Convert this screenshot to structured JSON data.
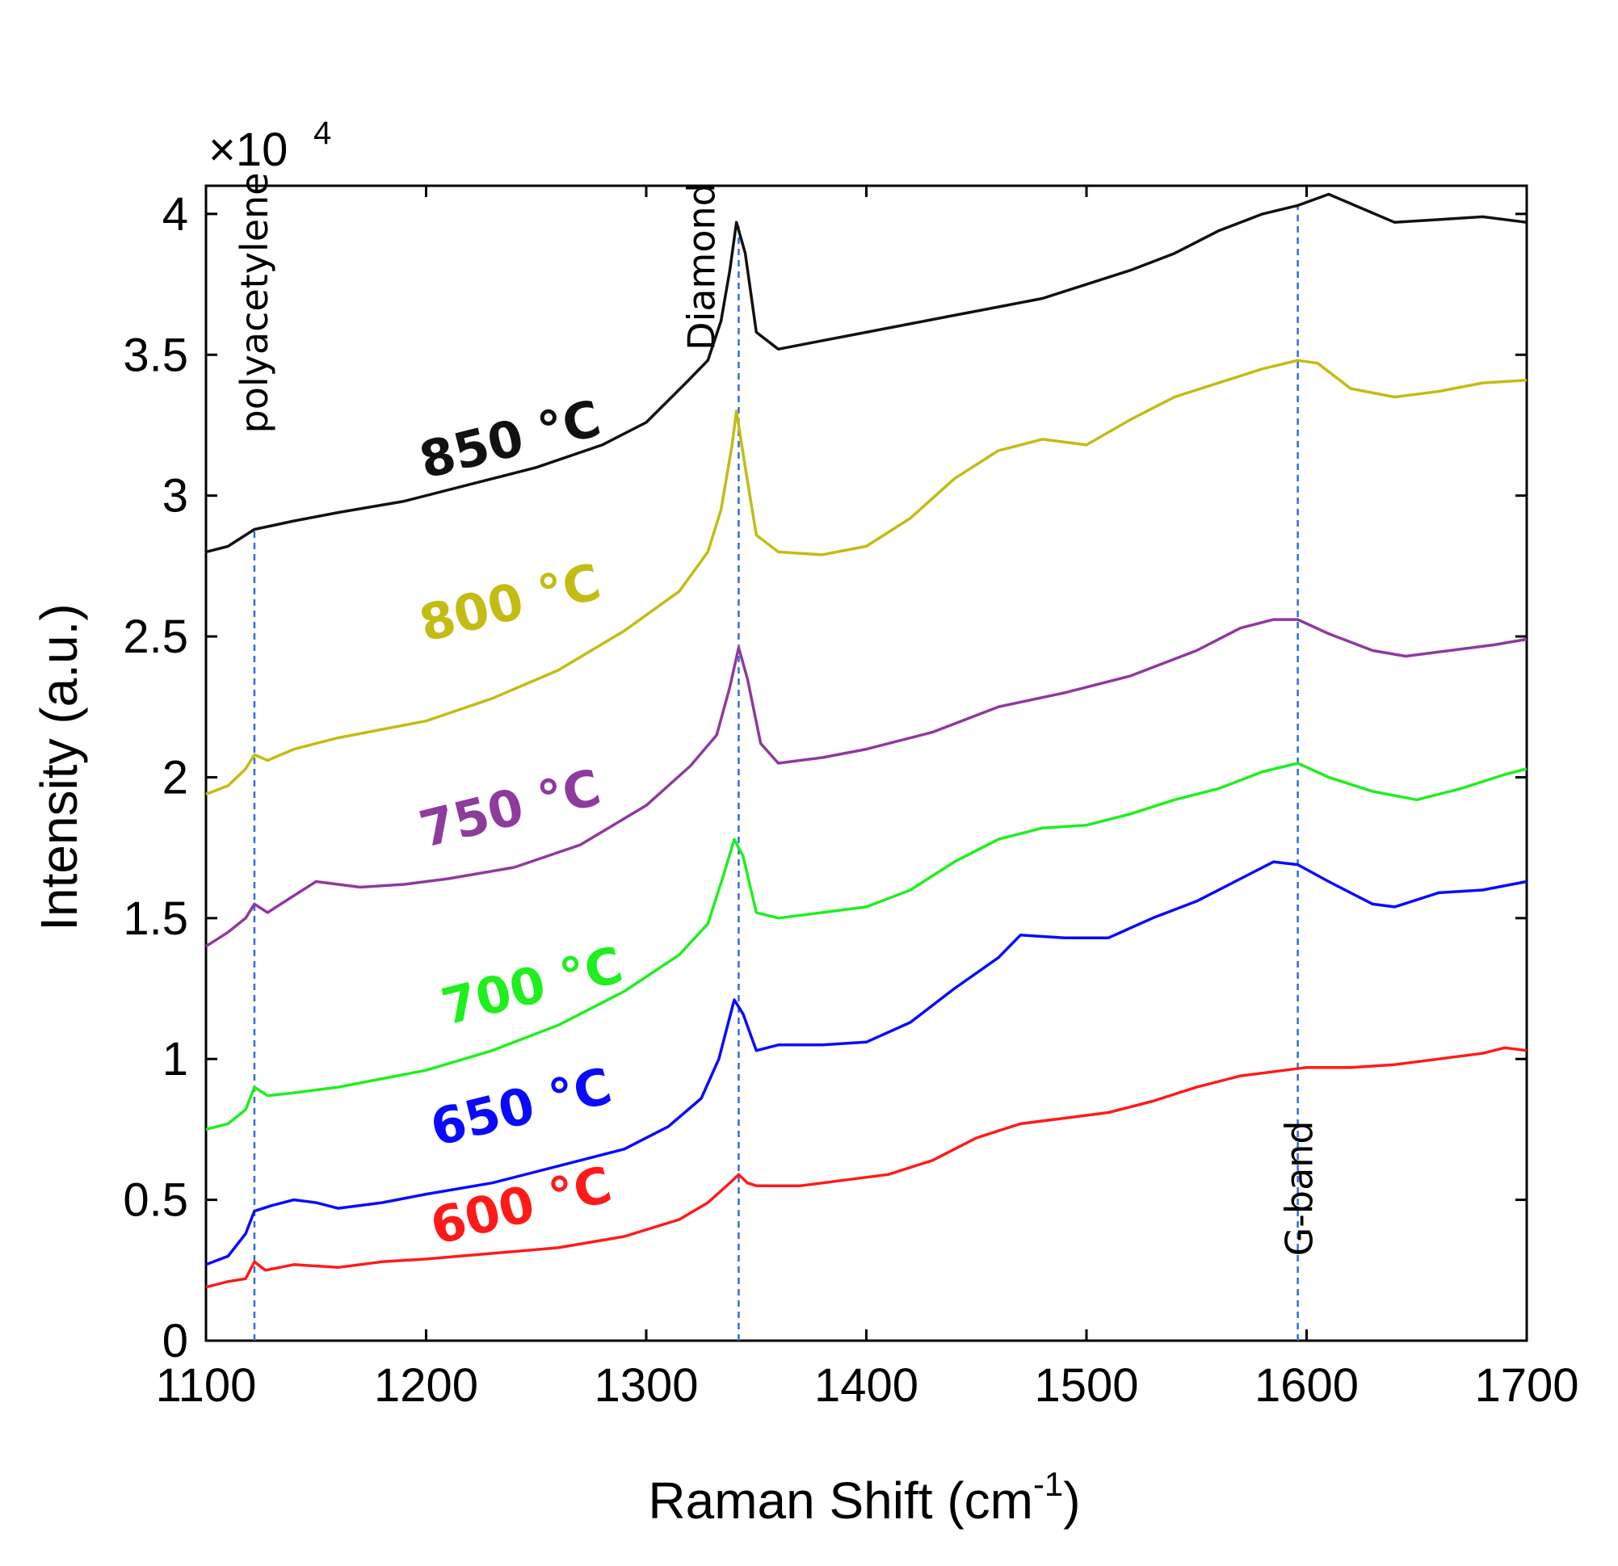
{
  "chart_data": {
    "type": "line",
    "title": "",
    "xlabel": "Raman Shift (cm",
    "xlabel_sup": "-1",
    "xlabel_end": ")",
    "ylabel": "Intensity (a.u.)",
    "y_multiplier": {
      "base": "×10",
      "exponent": "4"
    },
    "xlim": [
      1100,
      1700
    ],
    "ylim": [
      0,
      4.1
    ],
    "x_ticks": [
      {
        "value": 1100,
        "label": "1100"
      },
      {
        "value": 1200,
        "label": "1200"
      },
      {
        "value": 1300,
        "label": "1300"
      },
      {
        "value": 1400,
        "label": "1400"
      },
      {
        "value": 1500,
        "label": "1500"
      },
      {
        "value": 1600,
        "label": "1600"
      },
      {
        "value": 1700,
        "label": "1700"
      }
    ],
    "y_ticks": [
      {
        "value": 0,
        "label": "0"
      },
      {
        "value": 0.5,
        "label": "0.5"
      },
      {
        "value": 1,
        "label": "1"
      },
      {
        "value": 1.5,
        "label": "1.5"
      },
      {
        "value": 2,
        "label": "2"
      },
      {
        "value": 2.5,
        "label": "2.5"
      },
      {
        "value": 3,
        "label": "3"
      },
      {
        "value": 3.5,
        "label": "3.5"
      },
      {
        "value": 4,
        "label": "4"
      }
    ],
    "reference_lines": [
      {
        "x": 1122,
        "label": "polyacetylene"
      },
      {
        "x": 1342,
        "label": "Diamond"
      },
      {
        "x": 1596,
        "label": "G-band"
      }
    ],
    "series": [
      {
        "name": "600 °C",
        "color": "#ff1a1a",
        "label_anchor": {
          "x": 1245,
          "y": 0.42
        },
        "points": [
          [
            1100,
            0.19
          ],
          [
            1110,
            0.21
          ],
          [
            1118,
            0.22
          ],
          [
            1122,
            0.28
          ],
          [
            1127,
            0.25
          ],
          [
            1140,
            0.27
          ],
          [
            1160,
            0.26
          ],
          [
            1180,
            0.28
          ],
          [
            1200,
            0.29
          ],
          [
            1230,
            0.31
          ],
          [
            1260,
            0.33
          ],
          [
            1290,
            0.37
          ],
          [
            1315,
            0.43
          ],
          [
            1328,
            0.49
          ],
          [
            1338,
            0.56
          ],
          [
            1342,
            0.59
          ],
          [
            1346,
            0.56
          ],
          [
            1350,
            0.55
          ],
          [
            1370,
            0.55
          ],
          [
            1390,
            0.57
          ],
          [
            1410,
            0.59
          ],
          [
            1430,
            0.64
          ],
          [
            1450,
            0.72
          ],
          [
            1470,
            0.77
          ],
          [
            1490,
            0.79
          ],
          [
            1510,
            0.81
          ],
          [
            1530,
            0.85
          ],
          [
            1550,
            0.9
          ],
          [
            1570,
            0.94
          ],
          [
            1590,
            0.96
          ],
          [
            1600,
            0.97
          ],
          [
            1620,
            0.97
          ],
          [
            1640,
            0.98
          ],
          [
            1660,
            1.0
          ],
          [
            1680,
            1.02
          ],
          [
            1690,
            1.04
          ],
          [
            1700,
            1.03
          ]
        ]
      },
      {
        "name": "650 °C",
        "color": "#0a0aff",
        "label_anchor": {
          "x": 1245,
          "y": 0.77
        },
        "points": [
          [
            1100,
            0.27
          ],
          [
            1110,
            0.3
          ],
          [
            1118,
            0.38
          ],
          [
            1122,
            0.46
          ],
          [
            1130,
            0.48
          ],
          [
            1140,
            0.5
          ],
          [
            1150,
            0.49
          ],
          [
            1160,
            0.47
          ],
          [
            1180,
            0.49
          ],
          [
            1200,
            0.52
          ],
          [
            1230,
            0.56
          ],
          [
            1260,
            0.62
          ],
          [
            1290,
            0.68
          ],
          [
            1310,
            0.76
          ],
          [
            1325,
            0.86
          ],
          [
            1333,
            1.0
          ],
          [
            1338,
            1.15
          ],
          [
            1340,
            1.21
          ],
          [
            1344,
            1.16
          ],
          [
            1350,
            1.03
          ],
          [
            1360,
            1.05
          ],
          [
            1380,
            1.05
          ],
          [
            1400,
            1.06
          ],
          [
            1420,
            1.13
          ],
          [
            1440,
            1.25
          ],
          [
            1460,
            1.36
          ],
          [
            1470,
            1.44
          ],
          [
            1490,
            1.43
          ],
          [
            1510,
            1.43
          ],
          [
            1530,
            1.5
          ],
          [
            1550,
            1.56
          ],
          [
            1570,
            1.64
          ],
          [
            1585,
            1.7
          ],
          [
            1596,
            1.69
          ],
          [
            1610,
            1.63
          ],
          [
            1630,
            1.55
          ],
          [
            1640,
            1.54
          ],
          [
            1660,
            1.59
          ],
          [
            1680,
            1.6
          ],
          [
            1700,
            1.63
          ]
        ]
      },
      {
        "name": "700 °C",
        "color": "#1fef1f",
        "label_anchor": {
          "x": 1250,
          "y": 1.2
        },
        "points": [
          [
            1100,
            0.75
          ],
          [
            1110,
            0.77
          ],
          [
            1118,
            0.82
          ],
          [
            1122,
            0.9
          ],
          [
            1128,
            0.87
          ],
          [
            1140,
            0.88
          ],
          [
            1160,
            0.9
          ],
          [
            1180,
            0.93
          ],
          [
            1200,
            0.96
          ],
          [
            1230,
            1.03
          ],
          [
            1260,
            1.12
          ],
          [
            1290,
            1.24
          ],
          [
            1315,
            1.37
          ],
          [
            1328,
            1.48
          ],
          [
            1335,
            1.65
          ],
          [
            1340,
            1.78
          ],
          [
            1344,
            1.72
          ],
          [
            1350,
            1.52
          ],
          [
            1360,
            1.5
          ],
          [
            1380,
            1.52
          ],
          [
            1400,
            1.54
          ],
          [
            1420,
            1.6
          ],
          [
            1440,
            1.7
          ],
          [
            1460,
            1.78
          ],
          [
            1480,
            1.82
          ],
          [
            1500,
            1.83
          ],
          [
            1520,
            1.87
          ],
          [
            1540,
            1.92
          ],
          [
            1560,
            1.96
          ],
          [
            1580,
            2.02
          ],
          [
            1596,
            2.05
          ],
          [
            1610,
            2.0
          ],
          [
            1630,
            1.95
          ],
          [
            1650,
            1.92
          ],
          [
            1670,
            1.96
          ],
          [
            1690,
            2.01
          ],
          [
            1700,
            2.03
          ]
        ]
      },
      {
        "name": "750 °C",
        "color": "#8e3a9e",
        "label_anchor": {
          "x": 1240,
          "y": 1.83
        },
        "points": [
          [
            1100,
            1.4
          ],
          [
            1110,
            1.45
          ],
          [
            1118,
            1.5
          ],
          [
            1122,
            1.55
          ],
          [
            1128,
            1.52
          ],
          [
            1140,
            1.58
          ],
          [
            1150,
            1.63
          ],
          [
            1170,
            1.61
          ],
          [
            1190,
            1.62
          ],
          [
            1210,
            1.64
          ],
          [
            1240,
            1.68
          ],
          [
            1270,
            1.76
          ],
          [
            1300,
            1.9
          ],
          [
            1320,
            2.04
          ],
          [
            1332,
            2.15
          ],
          [
            1338,
            2.32
          ],
          [
            1342,
            2.46
          ],
          [
            1346,
            2.35
          ],
          [
            1352,
            2.12
          ],
          [
            1360,
            2.05
          ],
          [
            1380,
            2.07
          ],
          [
            1400,
            2.1
          ],
          [
            1430,
            2.16
          ],
          [
            1460,
            2.25
          ],
          [
            1490,
            2.3
          ],
          [
            1520,
            2.36
          ],
          [
            1550,
            2.45
          ],
          [
            1570,
            2.53
          ],
          [
            1585,
            2.56
          ],
          [
            1596,
            2.56
          ],
          [
            1610,
            2.51
          ],
          [
            1630,
            2.45
          ],
          [
            1645,
            2.43
          ],
          [
            1665,
            2.45
          ],
          [
            1685,
            2.47
          ],
          [
            1700,
            2.49
          ]
        ]
      },
      {
        "name": "800 °C",
        "color": "#c3bc13",
        "label_anchor": {
          "x": 1240,
          "y": 2.56
        },
        "points": [
          [
            1100,
            1.94
          ],
          [
            1110,
            1.97
          ],
          [
            1118,
            2.03
          ],
          [
            1122,
            2.08
          ],
          [
            1128,
            2.06
          ],
          [
            1140,
            2.1
          ],
          [
            1160,
            2.14
          ],
          [
            1180,
            2.17
          ],
          [
            1200,
            2.2
          ],
          [
            1230,
            2.28
          ],
          [
            1260,
            2.38
          ],
          [
            1290,
            2.52
          ],
          [
            1315,
            2.66
          ],
          [
            1328,
            2.8
          ],
          [
            1334,
            2.95
          ],
          [
            1339,
            3.18
          ],
          [
            1341,
            3.3
          ],
          [
            1345,
            3.1
          ],
          [
            1350,
            2.86
          ],
          [
            1360,
            2.8
          ],
          [
            1380,
            2.79
          ],
          [
            1400,
            2.82
          ],
          [
            1420,
            2.92
          ],
          [
            1440,
            3.06
          ],
          [
            1460,
            3.16
          ],
          [
            1480,
            3.2
          ],
          [
            1500,
            3.18
          ],
          [
            1520,
            3.27
          ],
          [
            1540,
            3.35
          ],
          [
            1560,
            3.4
          ],
          [
            1580,
            3.45
          ],
          [
            1596,
            3.48
          ],
          [
            1605,
            3.47
          ],
          [
            1620,
            3.38
          ],
          [
            1640,
            3.35
          ],
          [
            1660,
            3.37
          ],
          [
            1680,
            3.4
          ],
          [
            1700,
            3.41
          ]
        ]
      },
      {
        "name": "850 °C",
        "color": "#111111",
        "label_anchor": {
          "x": 1240,
          "y": 3.14
        },
        "points": [
          [
            1100,
            2.8
          ],
          [
            1110,
            2.82
          ],
          [
            1122,
            2.88
          ],
          [
            1140,
            2.91
          ],
          [
            1160,
            2.94
          ],
          [
            1190,
            2.98
          ],
          [
            1220,
            3.04
          ],
          [
            1250,
            3.1
          ],
          [
            1280,
            3.18
          ],
          [
            1300,
            3.26
          ],
          [
            1318,
            3.4
          ],
          [
            1328,
            3.48
          ],
          [
            1334,
            3.62
          ],
          [
            1338,
            3.8
          ],
          [
            1341,
            3.97
          ],
          [
            1345,
            3.86
          ],
          [
            1350,
            3.58
          ],
          [
            1360,
            3.52
          ],
          [
            1380,
            3.55
          ],
          [
            1400,
            3.58
          ],
          [
            1420,
            3.61
          ],
          [
            1440,
            3.64
          ],
          [
            1460,
            3.67
          ],
          [
            1480,
            3.7
          ],
          [
            1500,
            3.75
          ],
          [
            1520,
            3.8
          ],
          [
            1540,
            3.86
          ],
          [
            1560,
            3.94
          ],
          [
            1580,
            4.0
          ],
          [
            1596,
            4.03
          ],
          [
            1610,
            4.07
          ],
          [
            1625,
            4.02
          ],
          [
            1640,
            3.97
          ],
          [
            1660,
            3.98
          ],
          [
            1680,
            3.99
          ],
          [
            1700,
            3.97
          ]
        ]
      }
    ]
  }
}
